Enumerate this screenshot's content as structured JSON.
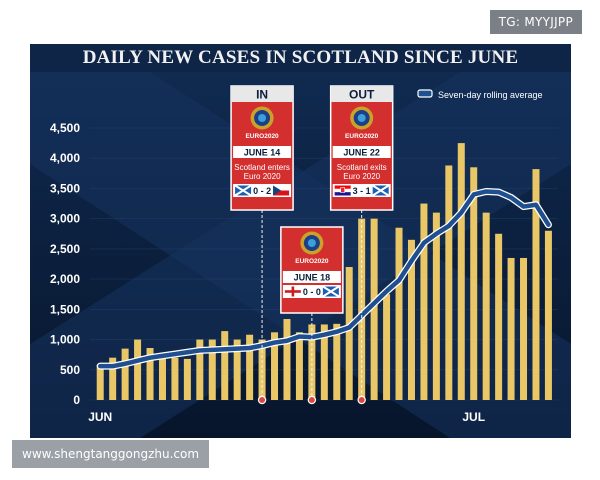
{
  "watermarks": {
    "top_right": "TG: MYYJJPP",
    "bottom_left": "www.shengtanggongzhu.com"
  },
  "chart_data": {
    "type": "bar",
    "title": "DAILY NEW CASES IN SCOTLAND SINCE JUNE",
    "xlabel": "",
    "ylabel": "",
    "ylim": [
      0,
      4500
    ],
    "yticks": [
      0,
      500,
      1000,
      1500,
      2000,
      2500,
      3000,
      3500,
      4000,
      4500
    ],
    "ytick_labels": [
      "0",
      "500",
      "1,000",
      "1,500",
      "2,000",
      "2,500",
      "3,000",
      "3,500",
      "4,000",
      "4,500"
    ],
    "xtick_labels": [
      {
        "label": "JUN",
        "index": 0
      },
      {
        "label": "JUL",
        "index": 30
      }
    ],
    "legend": {
      "position": "top-right",
      "label": "Seven-day rolling average"
    },
    "colors": {
      "bars": "#e9c766",
      "line": "#1f4f8f",
      "line_edge": "#ffffff",
      "marker": "#e0453a",
      "background": "#0b1e3c"
    },
    "values": [
      580,
      700,
      850,
      1000,
      860,
      680,
      700,
      680,
      1000,
      1000,
      1140,
      1000,
      1080,
      1000,
      1120,
      1340,
      1120,
      1250,
      1250,
      1260,
      2200,
      3000,
      3000,
      1750,
      2850,
      2650,
      3250,
      3100,
      3880,
      4250,
      3850,
      3100,
      2750,
      2350,
      2350,
      3820,
      2800
    ],
    "series": [
      {
        "name": "Seven-day rolling average",
        "values": [
          560,
          560,
          600,
          650,
          700,
          730,
          760,
          790,
          820,
          830,
          840,
          850,
          860,
          900,
          950,
          980,
          1050,
          1040,
          1080,
          1130,
          1200,
          1400,
          1600,
          1800,
          1980,
          2300,
          2600,
          2750,
          2880,
          3100,
          3400,
          3450,
          3440,
          3350,
          3200,
          3230,
          2900
        ]
      }
    ],
    "annotations": [
      {
        "label": "IN",
        "logo": "EURO2020",
        "date": "JUNE 14",
        "text": "Scotland enters Euro 2020",
        "score": "0 - 2",
        "home_flag": "scotland",
        "away_flag": "czech",
        "index": 13
      },
      {
        "label": "",
        "logo": "EURO2020",
        "date": "JUNE 18",
        "text": "",
        "score": "0 - 0",
        "home_flag": "england",
        "away_flag": "scotland",
        "index": 17
      },
      {
        "label": "OUT",
        "logo": "EURO2020",
        "date": "JUNE 22",
        "text": "Scotland exits Euro 2020",
        "score": "3 - 1",
        "home_flag": "croatia",
        "away_flag": "scotland",
        "index": 21
      }
    ]
  }
}
